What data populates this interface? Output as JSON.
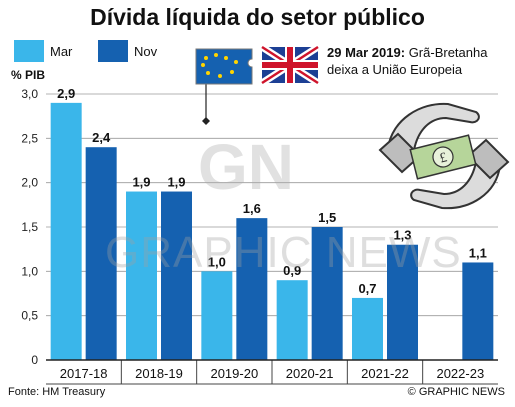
{
  "title": "Dívida líquida do setor público",
  "colors": {
    "mar": "#3ab6ea",
    "nov": "#1561b0",
    "grid": "#9a9a9a"
  },
  "legend": [
    {
      "label": "Mar",
      "color": "#3ab6ea"
    },
    {
      "label": "Nov",
      "color": "#1561b0"
    }
  ],
  "callout": {
    "date": "29 Mar 2019:",
    "text": "Grã-Bretanha deixa a União Europeia"
  },
  "source": "Fonte: HM Treasury",
  "credit": "© GRAPHIC NEWS",
  "watermark": "GRAPHIC NEWS",
  "watermark_logo": "GN",
  "chart_data": {
    "type": "bar",
    "ylabel": "% PIB",
    "ylim": [
      0,
      3.0
    ],
    "yticks": [
      "0",
      "0,5",
      "1,0",
      "1,5",
      "2,0",
      "2,5",
      "3,0"
    ],
    "categories": [
      "2017-18",
      "2018-19",
      "2019-20",
      "2020-21",
      "2021-22",
      "2022-23"
    ],
    "series": [
      {
        "name": "Mar",
        "values": [
          2.9,
          1.9,
          1.0,
          0.9,
          0.7,
          null
        ],
        "labels": [
          "2,9",
          "1,9",
          "1,0",
          "0,9",
          "0,7",
          ""
        ]
      },
      {
        "name": "Nov",
        "values": [
          2.4,
          1.9,
          1.6,
          1.5,
          1.3,
          1.1
        ],
        "labels": [
          "2,4",
          "1,9",
          "1,6",
          "1,5",
          "1,3",
          "1,1"
        ]
      }
    ]
  }
}
